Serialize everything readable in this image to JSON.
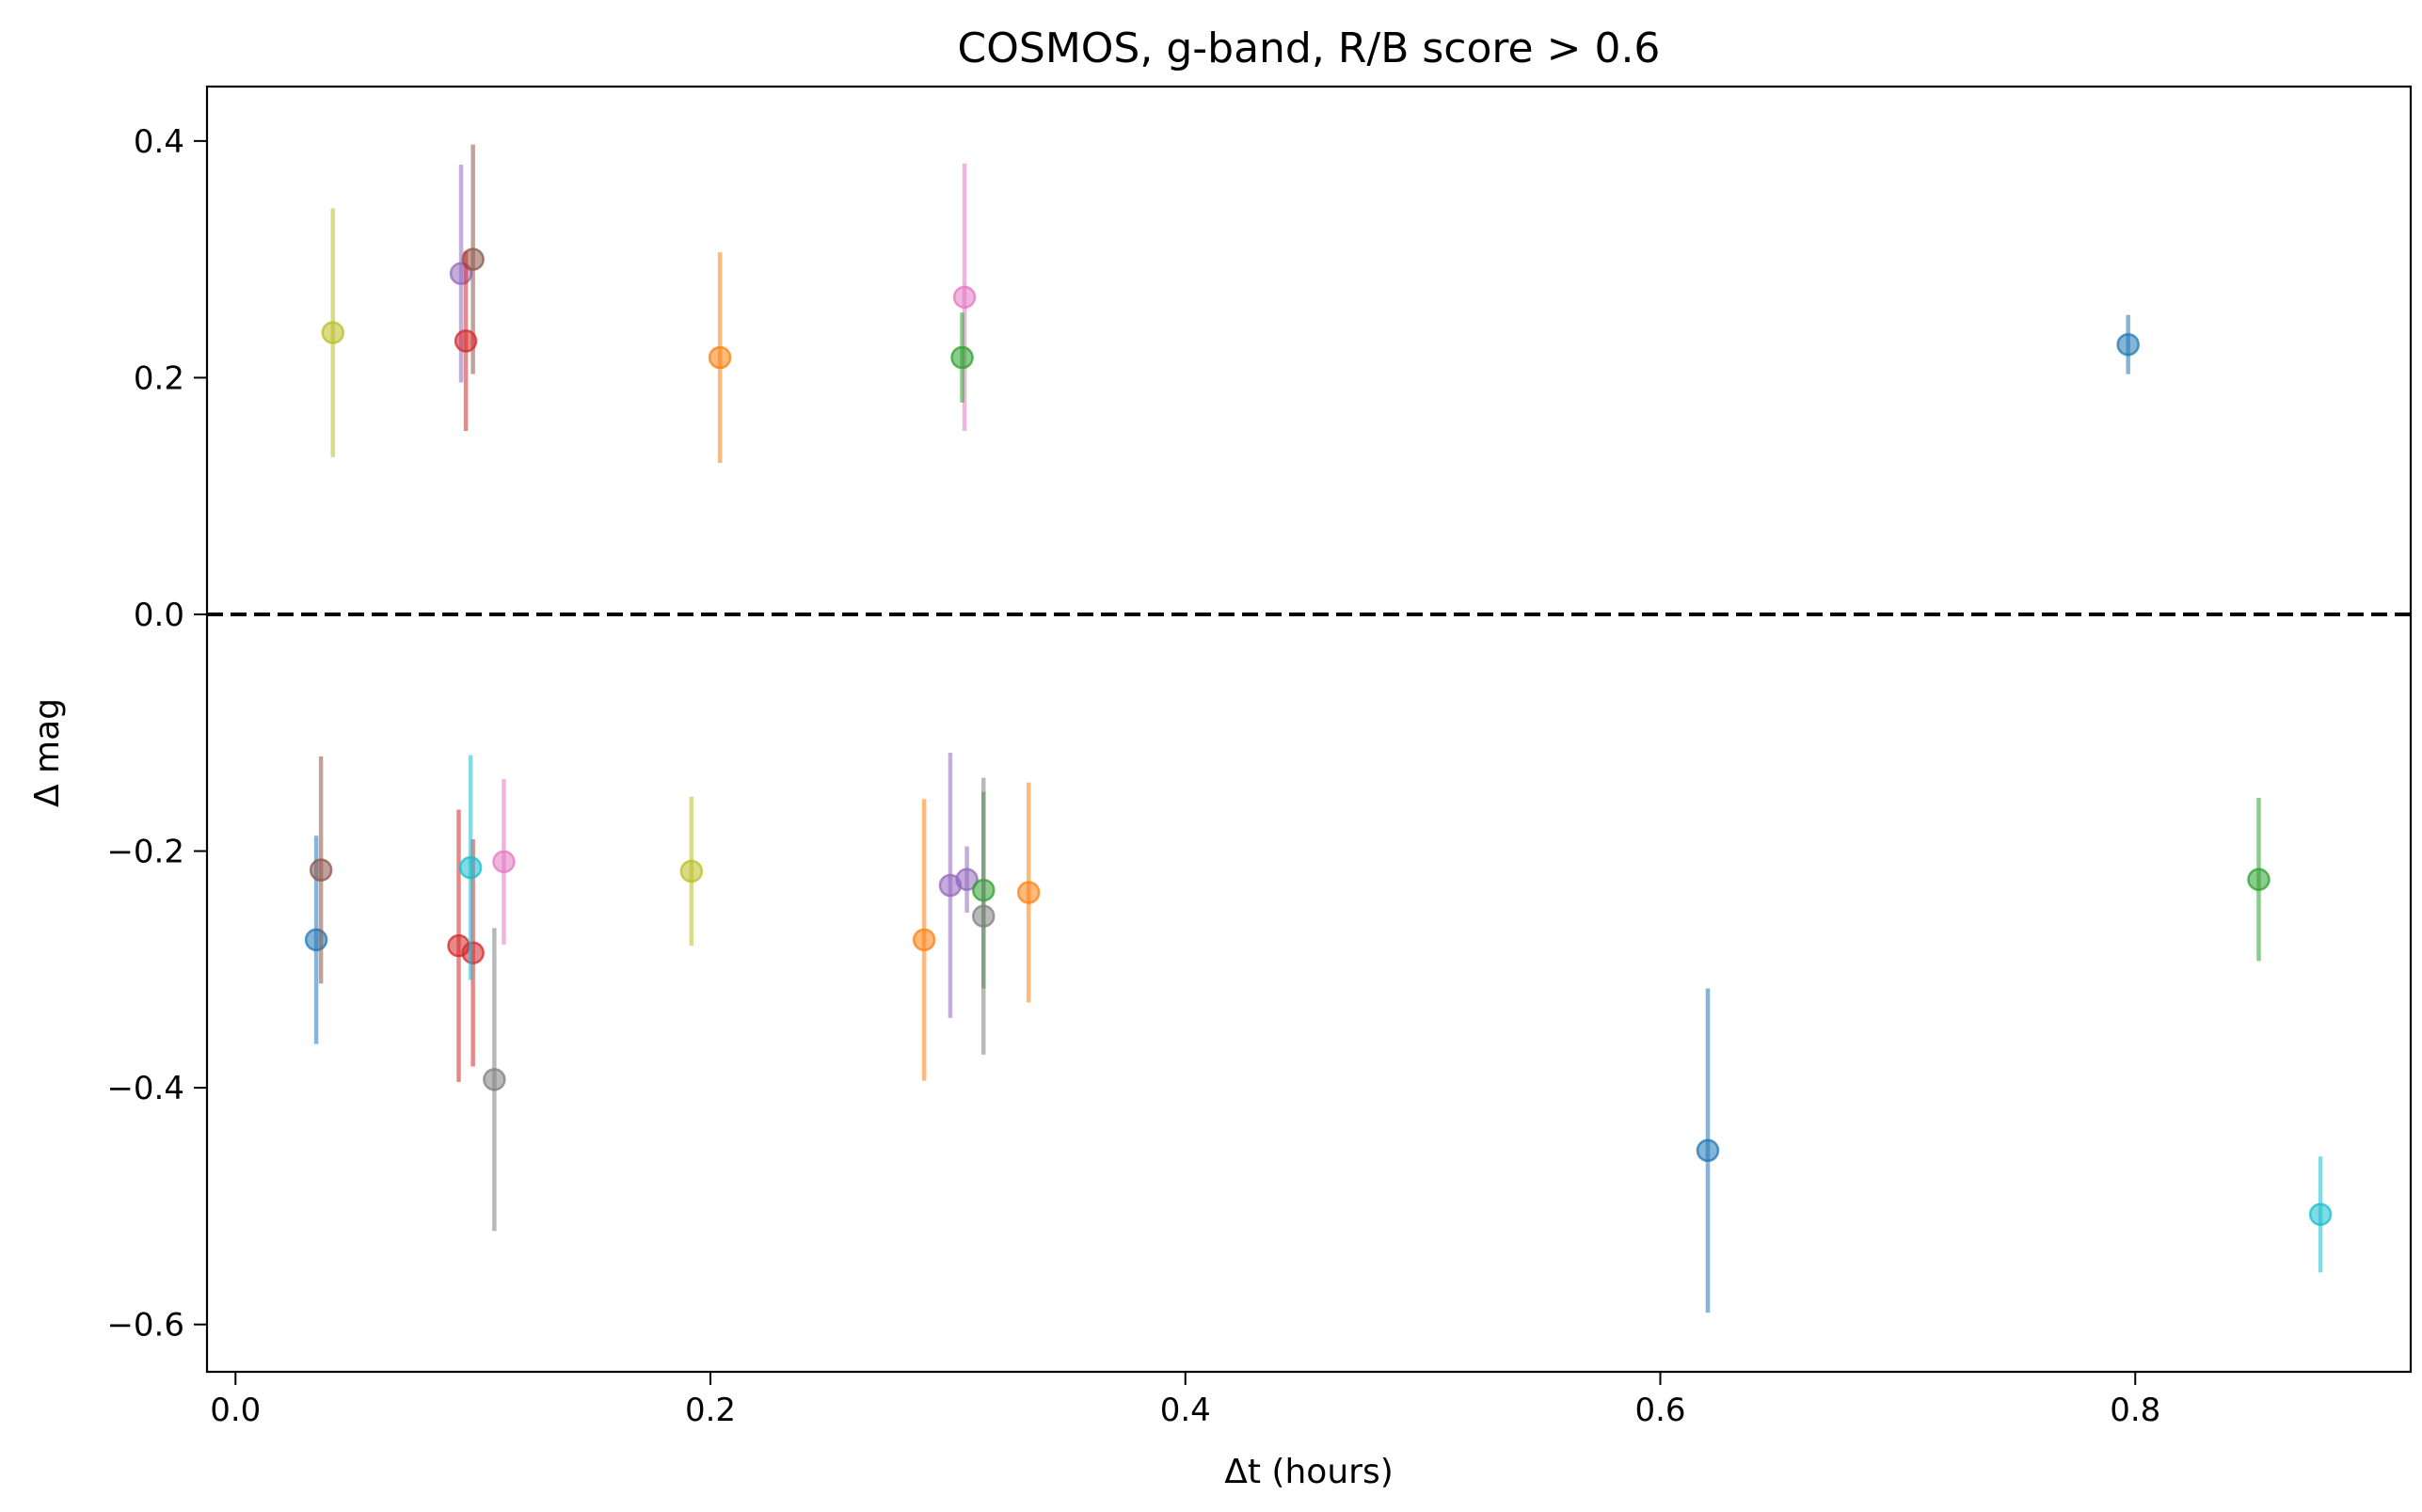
{
  "chart_data": {
    "type": "scatter",
    "title": "COSMOS, g-band, R/B score > 0.6",
    "xlabel": "Δt (hours)",
    "ylabel": "Δ mag",
    "xlim": [
      -0.012,
      0.916
    ],
    "ylim": [
      -0.64,
      0.446
    ],
    "xticks": [
      0.0,
      0.2,
      0.4,
      0.6,
      0.8
    ],
    "xtick_labels": [
      "0.0",
      "0.2",
      "0.4",
      "0.6",
      "0.8"
    ],
    "yticks": [
      0.4,
      0.2,
      0.0,
      -0.2,
      -0.4,
      -0.6
    ],
    "ytick_labels": [
      "0.4",
      "0.2",
      "0.0",
      "−0.2",
      "−0.4",
      "−0.6"
    ],
    "reference_line": {
      "y": 0.0,
      "style": "dashed",
      "color": "#000000"
    },
    "grid": false,
    "marker_alpha": 0.55,
    "points": [
      {
        "x": 0.041,
        "y": 0.238,
        "yerr": 0.105,
        "color": "#bcbd22"
      },
      {
        "x": 0.095,
        "y": 0.288,
        "yerr": 0.092,
        "color": "#9467bd"
      },
      {
        "x": 0.1,
        "y": 0.3,
        "yerr": 0.097,
        "color": "#8c564b"
      },
      {
        "x": 0.097,
        "y": 0.231,
        "yerr": 0.076,
        "color": "#d62728"
      },
      {
        "x": 0.204,
        "y": 0.217,
        "yerr": 0.089,
        "color": "#ff7f0e"
      },
      {
        "x": 0.307,
        "y": 0.268,
        "yerr": 0.113,
        "color": "#e377c2"
      },
      {
        "x": 0.306,
        "y": 0.217,
        "yerr": 0.038,
        "color": "#2ca02c"
      },
      {
        "x": 0.797,
        "y": 0.228,
        "yerr": 0.025,
        "color": "#1f77b4"
      },
      {
        "x": 0.034,
        "y": -0.275,
        "yerr": 0.088,
        "color": "#1f77b4"
      },
      {
        "x": 0.036,
        "y": -0.216,
        "yerr": 0.096,
        "color": "#8c564b"
      },
      {
        "x": 0.094,
        "y": -0.28,
        "yerr": 0.115,
        "color": "#d62728"
      },
      {
        "x": 0.1,
        "y": -0.286,
        "yerr": 0.096,
        "color": "#d62728"
      },
      {
        "x": 0.099,
        "y": -0.214,
        "yerr": 0.095,
        "color": "#17becf"
      },
      {
        "x": 0.113,
        "y": -0.209,
        "yerr": 0.07,
        "color": "#e377c2"
      },
      {
        "x": 0.109,
        "y": -0.393,
        "yerr": 0.128,
        "color": "#7f7f7f"
      },
      {
        "x": 0.192,
        "y": -0.217,
        "yerr": 0.063,
        "color": "#bcbd22"
      },
      {
        "x": 0.29,
        "y": -0.275,
        "yerr": 0.119,
        "color": "#ff7f0e"
      },
      {
        "x": 0.301,
        "y": -0.229,
        "yerr": 0.112,
        "color": "#9467bd"
      },
      {
        "x": 0.308,
        "y": -0.224,
        "yerr": 0.028,
        "color": "#9467bd"
      },
      {
        "x": 0.315,
        "y": -0.233,
        "yerr": 0.083,
        "color": "#2ca02c"
      },
      {
        "x": 0.315,
        "y": -0.255,
        "yerr": 0.117,
        "color": "#7f7f7f"
      },
      {
        "x": 0.334,
        "y": -0.235,
        "yerr": 0.093,
        "color": "#ff7f0e"
      },
      {
        "x": 0.62,
        "y": -0.453,
        "yerr": 0.137,
        "color": "#1f77b4"
      },
      {
        "x": 0.852,
        "y": -0.224,
        "yerr": 0.069,
        "color": "#2ca02c"
      },
      {
        "x": 0.878,
        "y": -0.507,
        "yerr": 0.049,
        "color": "#17becf"
      }
    ]
  }
}
